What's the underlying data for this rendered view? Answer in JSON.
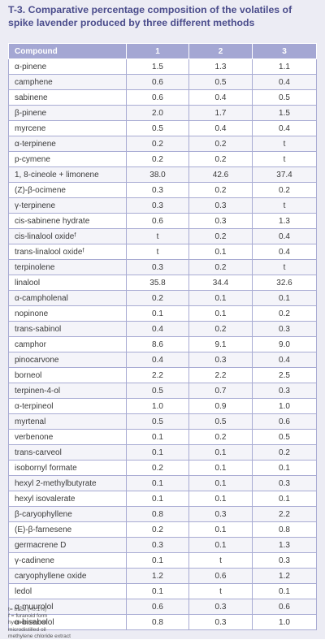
{
  "title": "T-3. Comparative percentage composition of the volatiles of spike lavender produced by three different methods",
  "table": {
    "headers": [
      "Compound",
      "1",
      "2",
      "3"
    ],
    "rows": [
      [
        "α-pinene",
        "1.5",
        "1.3",
        "1.1"
      ],
      [
        "camphene",
        "0.6",
        "0.5",
        "0.4"
      ],
      [
        "sabinene",
        "0.6",
        "0.4",
        "0.5"
      ],
      [
        "β-pinene",
        "2.0",
        "1.7",
        "1.5"
      ],
      [
        "myrcene",
        "0.5",
        "0.4",
        "0.4"
      ],
      [
        "α-terpinene",
        "0.2",
        "0.2",
        "t"
      ],
      [
        "p-cymene",
        "0.2",
        "0.2",
        "t"
      ],
      [
        "1, 8-cineole + limonene",
        "38.0",
        "42.6",
        "37.4"
      ],
      [
        "(Z)-β-ocimene",
        "0.3",
        "0.2",
        "0.2"
      ],
      [
        "γ-terpinene",
        "0.3",
        "0.3",
        "t"
      ],
      [
        "cis-sabinene hydrate",
        "0.6",
        "0.3",
        "1.3"
      ],
      [
        "cis-linalool oxideᶠ",
        "t",
        "0.2",
        "0.4"
      ],
      [
        "trans-linalool oxideᶠ",
        "t",
        "0.1",
        "0.4"
      ],
      [
        "terpinolene",
        "0.3",
        "0.2",
        "t"
      ],
      [
        "linalool",
        "35.8",
        "34.4",
        "32.6"
      ],
      [
        "α-campholenal",
        "0.2",
        "0.1",
        "0.1"
      ],
      [
        "nopinone",
        "0.1",
        "0.1",
        "0.2"
      ],
      [
        "trans-sabinol",
        "0.4",
        "0.2",
        "0.3"
      ],
      [
        "camphor",
        "8.6",
        "9.1",
        "9.0"
      ],
      [
        "pinocarvone",
        "0.4",
        "0.3",
        "0.4"
      ],
      [
        "borneol",
        "2.2",
        "2.2",
        "2.5"
      ],
      [
        "terpinen-4-ol",
        "0.5",
        "0.7",
        "0.3"
      ],
      [
        "α-terpineol",
        "1.0",
        "0.9",
        "1.0"
      ],
      [
        "myrtenal",
        "0.5",
        "0.5",
        "0.6"
      ],
      [
        "verbenone",
        "0.1",
        "0.2",
        "0.5"
      ],
      [
        "trans-carveol",
        "0.1",
        "0.1",
        "0.2"
      ],
      [
        "isobornyl formate",
        "0.2",
        "0.1",
        "0.1"
      ],
      [
        "hexyl 2-methylbutyrate",
        "0.1",
        "0.1",
        "0.3"
      ],
      [
        "hexyl isovalerate",
        "0.1",
        "0.1",
        "0.1"
      ],
      [
        "β-caryophyllene",
        "0.8",
        "0.3",
        "2.2"
      ],
      [
        "(E)-β-farnesene",
        "0.2",
        "0.1",
        "0.8"
      ],
      [
        "germacrene D",
        "0.3",
        "0.1",
        "1.3"
      ],
      [
        "γ-cadinene",
        "0.1",
        "t",
        "0.3"
      ],
      [
        "caryophyllene oxide",
        "1.2",
        "0.6",
        "1.2"
      ],
      [
        "ledol",
        "0.1",
        "t",
        "0.1"
      ],
      [
        "α-muurolol",
        "0.6",
        "0.3",
        "0.6"
      ],
      [
        "α-bisabolol",
        "0.8",
        "0.3",
        "1.0"
      ]
    ]
  },
  "notes": [
    "t= trace (<0.1%)",
    "f = furanoid form",
    "hydrodistilled oil",
    "microdistilled oil",
    "methylene chloride extract"
  ]
}
